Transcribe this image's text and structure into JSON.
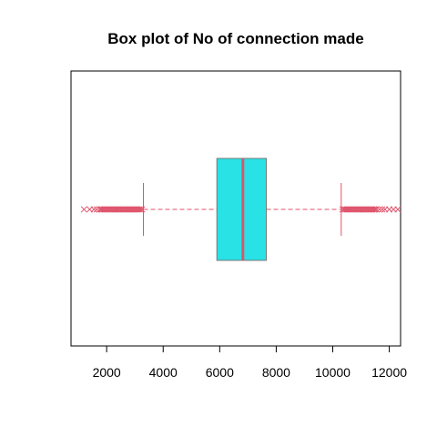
{
  "chart_data": {
    "type": "boxplot",
    "orientation": "horizontal",
    "title": "Box plot of No of connection made",
    "xlabel": "",
    "ylabel": "",
    "xlim": [
      739,
      12400
    ],
    "x_ticks": [
      2000,
      4000,
      6000,
      8000,
      10000,
      12000
    ],
    "x_tick_labels": [
      "2000",
      "4000",
      "6000",
      "8000",
      "10000",
      "12000"
    ],
    "grid": false,
    "box": {
      "whisker_low": 3300,
      "q1": 5900,
      "median": 6820,
      "q3": 7650,
      "whisker_high": 10300
    },
    "outliers_low": [
      1200,
      1400,
      1550,
      1650,
      1750,
      1800,
      1850,
      1900,
      1950,
      2000,
      2050,
      2100,
      2150,
      2200,
      2250,
      2300,
      2350,
      2400,
      2450,
      2500,
      2550,
      2600,
      2650,
      2700,
      2750,
      2800,
      2850,
      2900,
      2950,
      3000,
      3050,
      3100,
      3150,
      3200,
      3250
    ],
    "outliers_high": [
      10350,
      10400,
      10450,
      10500,
      10550,
      10600,
      10650,
      10700,
      10750,
      10800,
      10850,
      10900,
      10950,
      11000,
      11050,
      11100,
      11150,
      11200,
      11250,
      11300,
      11350,
      11400,
      11450,
      11500,
      11550,
      11650,
      11750,
      11850,
      12000,
      12150,
      12300
    ],
    "colors": {
      "box_fill": "#28E2E5",
      "box_border": "#777777",
      "median": "#DF536B",
      "whisker": "#DF536B",
      "outlier": "#DF536B",
      "frame": "#000000"
    }
  }
}
